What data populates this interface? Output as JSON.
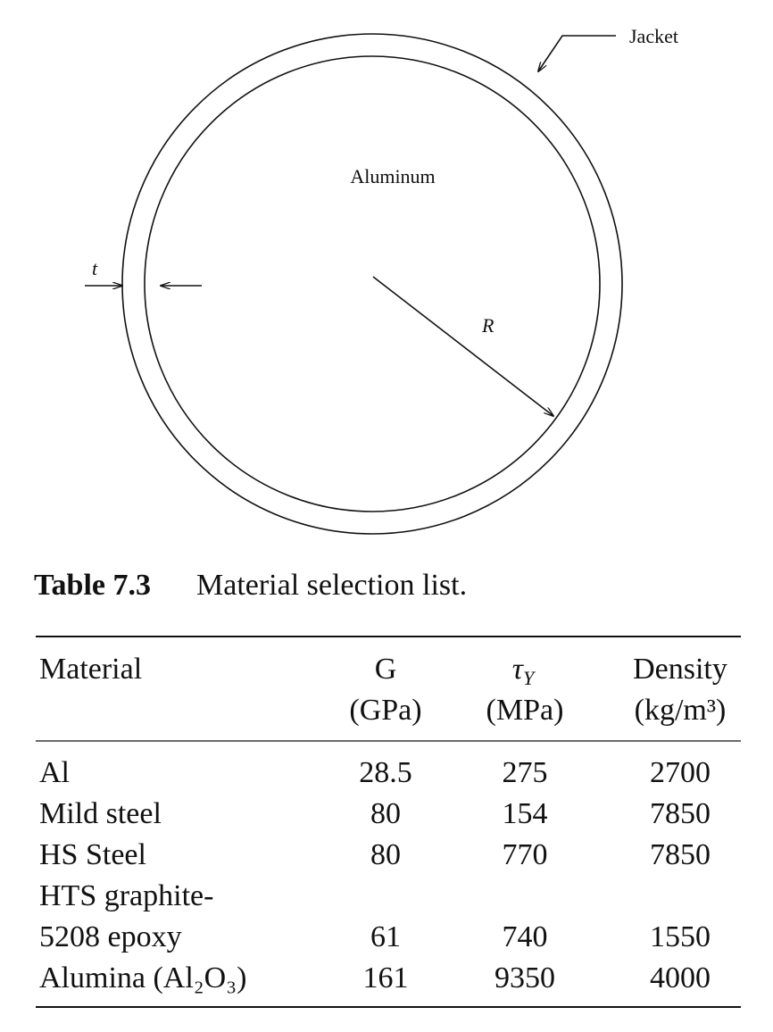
{
  "figure": {
    "labels": {
      "jacket": "Jacket",
      "core": "Aluminum",
      "thickness": "t",
      "radius": "R"
    }
  },
  "table": {
    "label": "Table 7.3",
    "caption": "Material selection list.",
    "columns": [
      {
        "name": "Material"
      },
      {
        "name": "G",
        "unit": "(GPa)"
      },
      {
        "symbol": "τ",
        "subscript": "Y",
        "unit": "(MPa)"
      },
      {
        "name": "Density",
        "unit": "(kg/m³)"
      }
    ],
    "rows": [
      [
        "Al",
        "28.5",
        "275",
        "2700"
      ],
      [
        "Mild steel",
        "80",
        "154",
        "7850"
      ],
      [
        "HS Steel",
        "80",
        "770",
        "7850"
      ],
      [
        [
          "HTS graphite-",
          "5208 epoxy"
        ],
        "61",
        "740",
        "1550"
      ],
      [
        "Alumina (Al₂O₃)",
        "161",
        "9350",
        "4000"
      ]
    ]
  }
}
